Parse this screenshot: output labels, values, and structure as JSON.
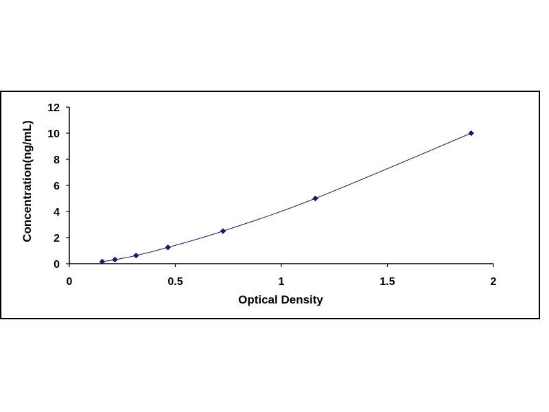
{
  "chart_data": {
    "type": "scatter",
    "title": "",
    "xlabel": "Optical Density",
    "ylabel": "Concentration(ng/mL)",
    "xlim": [
      0,
      2
    ],
    "ylim": [
      0,
      12
    ],
    "x_ticks": [
      0,
      0.5,
      1,
      1.5,
      2
    ],
    "x_tick_labels": [
      "0",
      "0.5",
      "1",
      "1.5",
      "2"
    ],
    "y_ticks": [
      0,
      2,
      4,
      6,
      8,
      10,
      12
    ],
    "y_tick_labels": [
      "0",
      "2",
      "4",
      "6",
      "8",
      "10",
      "12"
    ],
    "grid": false,
    "legend": "none",
    "series": [
      {
        "marker": "diamond",
        "marker_color": "#1a1a6e",
        "line_color": "#1a1a6e",
        "trendline": "polynomial",
        "points": [
          {
            "x": 0.155,
            "y": 0.156
          },
          {
            "x": 0.215,
            "y": 0.312
          },
          {
            "x": 0.315,
            "y": 0.625
          },
          {
            "x": 0.465,
            "y": 1.25
          },
          {
            "x": 0.725,
            "y": 2.5
          },
          {
            "x": 1.16,
            "y": 5
          },
          {
            "x": 1.895,
            "y": 10
          }
        ]
      }
    ]
  }
}
